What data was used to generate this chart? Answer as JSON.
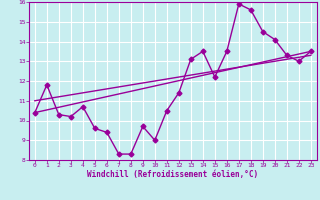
{
  "title": "",
  "xlabel": "Windchill (Refroidissement éolien,°C)",
  "ylabel": "",
  "bg_color": "#c8eef0",
  "line_color": "#990099",
  "grid_color": "#ffffff",
  "xlim": [
    -0.5,
    23.5
  ],
  "ylim": [
    8,
    16
  ],
  "xticks": [
    0,
    1,
    2,
    3,
    4,
    5,
    6,
    7,
    8,
    9,
    10,
    11,
    12,
    13,
    14,
    15,
    16,
    17,
    18,
    19,
    20,
    21,
    22,
    23
  ],
  "yticks": [
    8,
    9,
    10,
    11,
    12,
    13,
    14,
    15,
    16
  ],
  "main_x": [
    0,
    1,
    2,
    3,
    4,
    5,
    6,
    7,
    8,
    9,
    10,
    11,
    12,
    13,
    14,
    15,
    16,
    17,
    18,
    19,
    20,
    21,
    22,
    23
  ],
  "main_y": [
    10.4,
    11.8,
    10.3,
    10.2,
    10.7,
    9.6,
    9.4,
    8.3,
    8.3,
    9.7,
    9.0,
    10.5,
    11.4,
    13.1,
    13.5,
    12.2,
    13.5,
    15.9,
    15.6,
    14.5,
    14.1,
    13.3,
    13.0,
    13.5
  ],
  "trend1_x": [
    0,
    23
  ],
  "trend1_y": [
    10.4,
    13.5
  ],
  "trend2_x": [
    0,
    23
  ],
  "trend2_y": [
    11.0,
    13.3
  ],
  "marker": "D",
  "markersize": 2.5,
  "linewidth": 1.0
}
